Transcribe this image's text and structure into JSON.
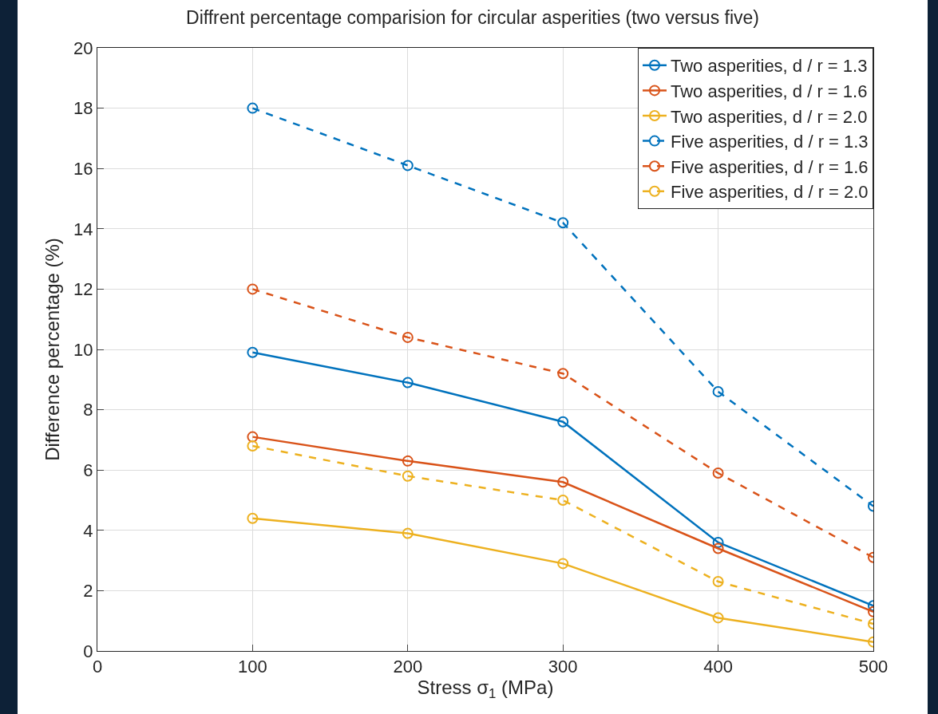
{
  "chart_data": {
    "type": "line",
    "title": "Diffrent percentage comparision for circular asperities (two versus five)",
    "xlabel": "Stress σ$_{1}$ (MPa)",
    "ylabel": "Difference percentage (%)",
    "x": [
      100,
      200,
      300,
      400,
      500
    ],
    "series": [
      {
        "name": "Two asperities, d / r = 1.3",
        "color": "#0072bd",
        "line_style": "solid",
        "values": [
          9.9,
          8.9,
          7.6,
          3.6,
          1.5
        ]
      },
      {
        "name": "Two asperities, d / r = 1.6",
        "color": "#d95319",
        "line_style": "solid",
        "values": [
          7.1,
          6.3,
          5.6,
          3.4,
          1.3
        ]
      },
      {
        "name": "Two asperities, d / r = 2.0",
        "color": "#edb120",
        "line_style": "solid",
        "values": [
          4.4,
          3.9,
          2.9,
          1.1,
          0.3
        ]
      },
      {
        "name": "Five asperities, d / r = 1.3",
        "color": "#0072bd",
        "line_style": "dashed",
        "values": [
          18.0,
          16.1,
          14.2,
          8.6,
          4.8
        ]
      },
      {
        "name": "Five asperities, d / r = 1.6",
        "color": "#d95319",
        "line_style": "dashed",
        "values": [
          12.0,
          10.4,
          9.2,
          5.9,
          3.1
        ]
      },
      {
        "name": "Five asperities, d / r = 2.0",
        "color": "#edb120",
        "line_style": "dashed",
        "values": [
          6.8,
          5.8,
          5.0,
          2.3,
          0.9
        ]
      }
    ],
    "xlim": [
      0,
      500
    ],
    "xticks": [
      0,
      100,
      200,
      300,
      400,
      500
    ],
    "ylim": [
      0,
      20
    ],
    "yticks": [
      0,
      2,
      4,
      6,
      8,
      10,
      12,
      14,
      16,
      18,
      20
    ],
    "grid": true,
    "legend": "top right",
    "marker": "circle"
  }
}
